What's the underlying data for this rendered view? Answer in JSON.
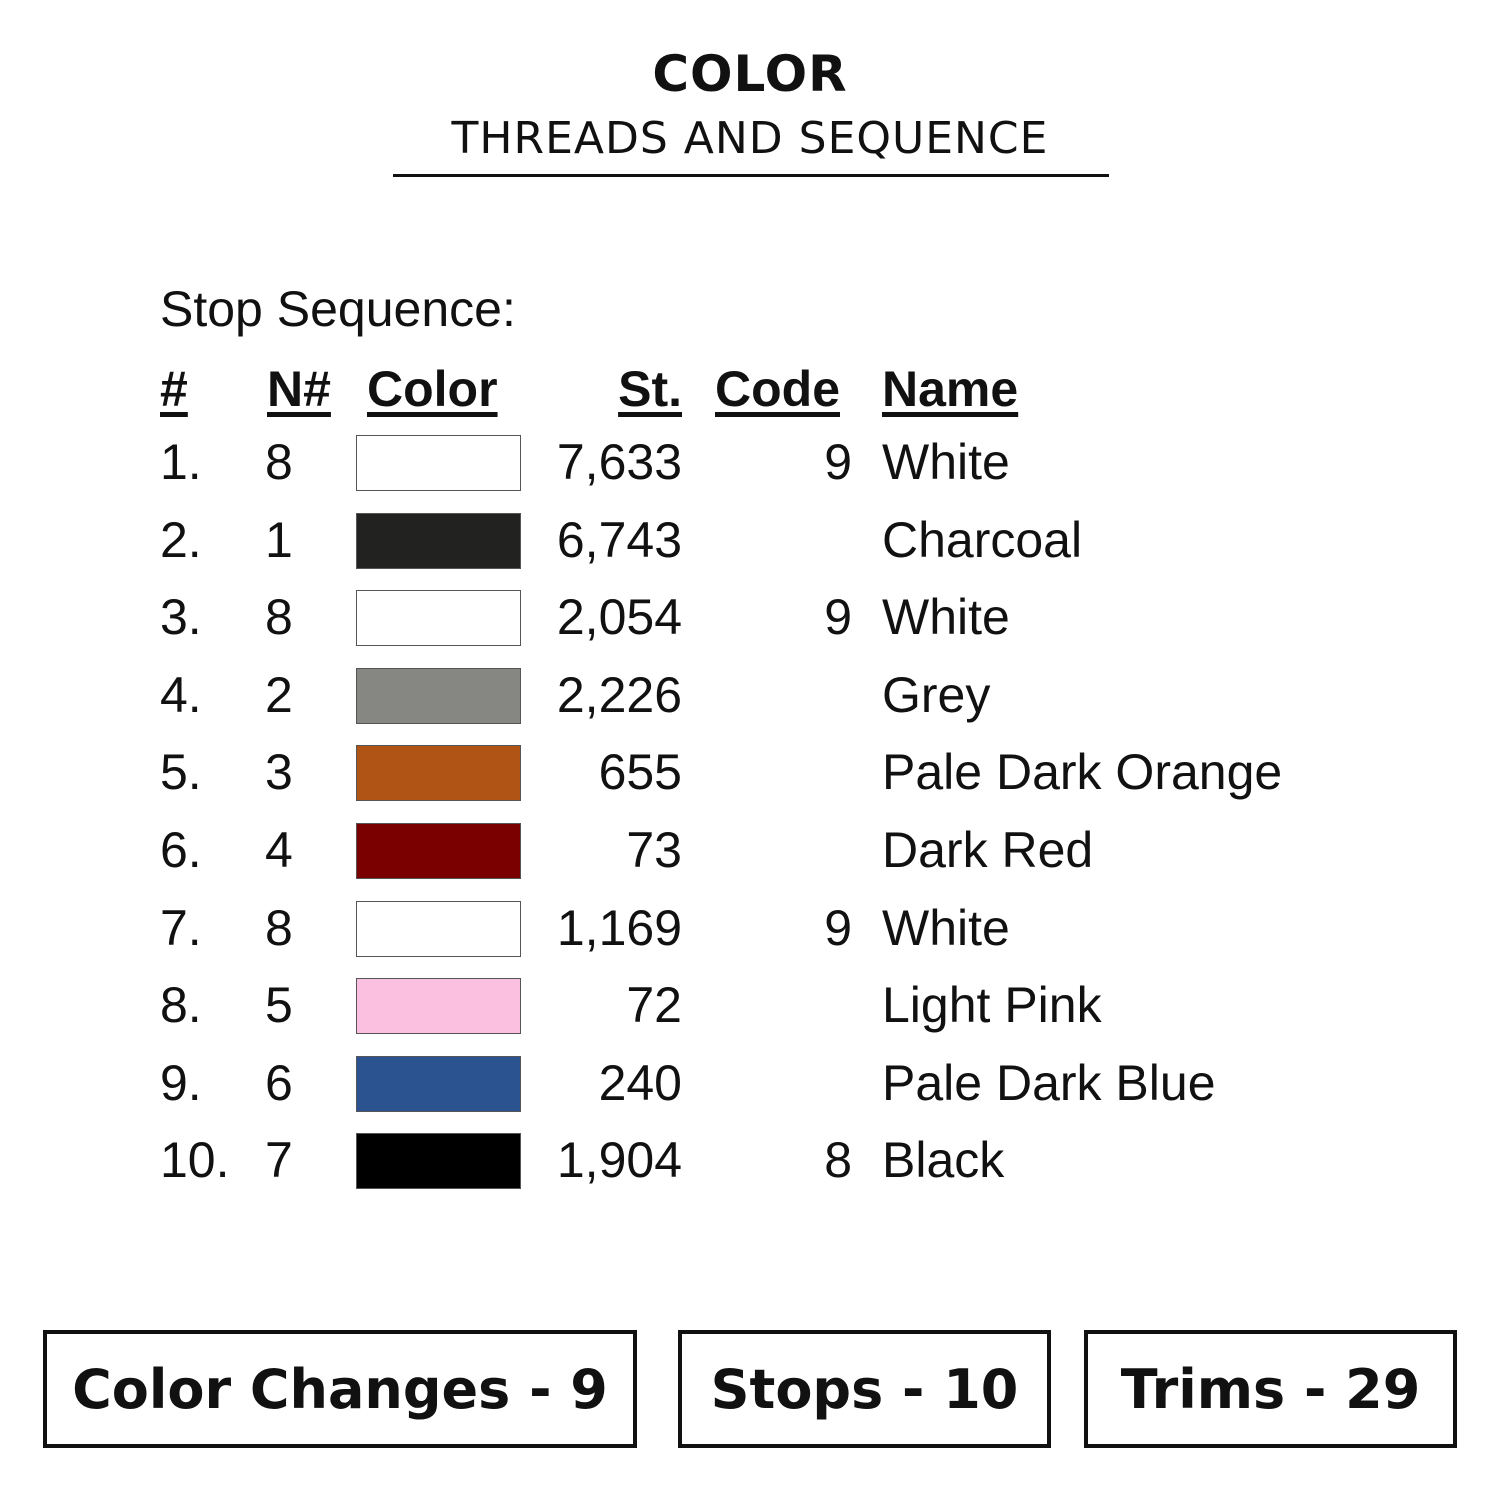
{
  "header": {
    "title": "COLOR",
    "subtitle": "THREADS AND SEQUENCE"
  },
  "table": {
    "label": "Stop Sequence:",
    "columns": [
      "#",
      "N#",
      "Color",
      "St.",
      "Code",
      "Name"
    ],
    "rows": [
      {
        "num": "1.",
        "n": "8",
        "color": "#ffffff",
        "st": "7,633",
        "code": "9",
        "name": "White"
      },
      {
        "num": "2.",
        "n": "1",
        "color": "#222220",
        "st": "6,743",
        "code": "",
        "name": "Charcoal"
      },
      {
        "num": "3.",
        "n": "8",
        "color": "#ffffff",
        "st": "2,054",
        "code": "9",
        "name": "White"
      },
      {
        "num": "4.",
        "n": "2",
        "color": "#868683",
        "st": "2,226",
        "code": "",
        "name": "Grey"
      },
      {
        "num": "5.",
        "n": "3",
        "color": "#b05415",
        "st": "655",
        "code": "",
        "name": "Pale Dark Orange"
      },
      {
        "num": "6.",
        "n": "4",
        "color": "#7a0000",
        "st": "73",
        "code": "",
        "name": "Dark Red"
      },
      {
        "num": "7.",
        "n": "8",
        "color": "#ffffff",
        "st": "1,169",
        "code": "9",
        "name": "White"
      },
      {
        "num": "8.",
        "n": "5",
        "color": "#fbc0e0",
        "st": "72",
        "code": "",
        "name": "Light Pink"
      },
      {
        "num": "9.",
        "n": "6",
        "color": "#2b5390",
        "st": "240",
        "code": "",
        "name": "Pale Dark Blue"
      },
      {
        "num": "10.",
        "n": "7",
        "color": "#000000",
        "st": "1,904",
        "code": "8",
        "name": "Black"
      }
    ]
  },
  "summary": {
    "color_changes": "Color Changes - 9",
    "stops": "Stops - 10",
    "trims": "Trims - 29"
  }
}
